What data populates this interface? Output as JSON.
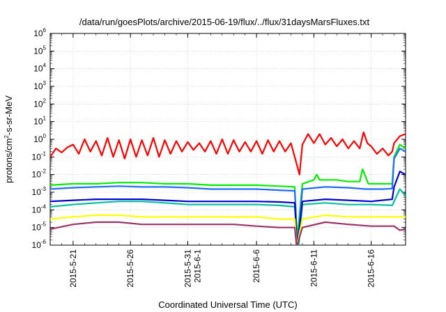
{
  "chart_data": {
    "type": "line",
    "title": "/data/run/goesPlots/archive/2015-06-19/flux/../flux/31daysMarsFluxes.txt",
    "xlabel": "Coordinated Universal Time (UTC)",
    "ylabel": "protons/cm²-s-sr-MeV",
    "ylabel_parts": {
      "pre": "protons/cm",
      "sup": "2",
      "post": "-s-sr-MeV"
    },
    "y_scale": "log",
    "ylim_exponents": [
      -6,
      6
    ],
    "y_tick_base": "10",
    "y_tick_exponents": [
      "-6",
      "-5",
      "-4",
      "-3",
      "-2",
      "-1",
      "0",
      "1",
      "2",
      "3",
      "4",
      "5",
      "6"
    ],
    "xlim": [
      "2015-05-19",
      "2015-06-19"
    ],
    "x_ticks": [
      {
        "date": "2015-05-21",
        "lines": [
          "2015-5-21"
        ]
      },
      {
        "date": "2015-05-26",
        "lines": [
          "2015-5-26"
        ]
      },
      {
        "date": "2015-05-31",
        "lines": [
          "2015-5-31",
          "2015-6-1"
        ]
      },
      {
        "date": "2015-06-06",
        "lines": [
          "2015-6-6"
        ]
      },
      {
        "date": "2015-06-11",
        "lines": [
          "2015-6-11"
        ]
      },
      {
        "date": "2015-06-16",
        "lines": [
          "2015-6-16"
        ]
      }
    ],
    "grid": true,
    "legend": "none",
    "series": [
      {
        "color": "#ff0000",
        "points": [
          [
            "2015-05-19",
            0.1
          ],
          [
            "2015-05-19T12:00",
            0.3
          ],
          [
            "2015-05-20",
            0.18
          ],
          [
            "2015-05-20T12:00",
            0.35
          ],
          [
            "2015-05-21",
            0.5
          ],
          [
            "2015-05-21T12:00",
            0.15
          ],
          [
            "2015-05-22",
            1.0
          ],
          [
            "2015-05-22T12:00",
            0.2
          ],
          [
            "2015-05-23",
            0.8
          ],
          [
            "2015-05-23T12:00",
            0.12
          ],
          [
            "2015-05-24",
            1.2
          ],
          [
            "2015-05-24T12:00",
            0.1
          ],
          [
            "2015-05-25",
            0.9
          ],
          [
            "2015-05-25T12:00",
            0.08
          ],
          [
            "2015-05-26",
            1.0
          ],
          [
            "2015-05-26T12:00",
            0.1
          ],
          [
            "2015-05-27",
            0.9
          ],
          [
            "2015-05-27T12:00",
            0.12
          ],
          [
            "2015-05-28",
            1.2
          ],
          [
            "2015-05-28T12:00",
            0.1
          ],
          [
            "2015-05-29",
            0.9
          ],
          [
            "2015-05-29T12:00",
            0.15
          ],
          [
            "2015-05-30",
            0.8
          ],
          [
            "2015-05-30T12:00",
            0.2
          ],
          [
            "2015-05-31",
            0.7
          ],
          [
            "2015-05-31T12:00",
            0.25
          ],
          [
            "2015-06-01",
            0.6
          ],
          [
            "2015-06-01T12:00",
            0.2
          ],
          [
            "2015-06-02",
            0.8
          ],
          [
            "2015-06-02T12:00",
            0.15
          ],
          [
            "2015-06-03",
            1.0
          ],
          [
            "2015-06-03T12:00",
            0.15
          ],
          [
            "2015-06-04",
            0.9
          ],
          [
            "2015-06-04T12:00",
            0.2
          ],
          [
            "2015-06-05",
            0.7
          ],
          [
            "2015-06-05T12:00",
            0.2
          ],
          [
            "2015-06-06",
            0.8
          ],
          [
            "2015-06-06T12:00",
            0.15
          ],
          [
            "2015-06-07",
            0.9
          ],
          [
            "2015-06-07T12:00",
            0.2
          ],
          [
            "2015-06-08",
            0.8
          ],
          [
            "2015-06-08T12:00",
            0.2
          ],
          [
            "2015-06-09",
            0.6
          ],
          [
            "2015-06-09T12:00",
            0.04
          ],
          [
            "2015-06-09T18:00",
            0.01
          ],
          [
            "2015-06-10",
            0.5
          ],
          [
            "2015-06-10T12:00",
            2.0
          ],
          [
            "2015-06-11",
            0.6
          ],
          [
            "2015-06-11T12:00",
            2.0
          ],
          [
            "2015-06-12",
            0.5
          ],
          [
            "2015-06-12T12:00",
            1.2
          ],
          [
            "2015-06-13",
            0.4
          ],
          [
            "2015-06-13T12:00",
            1.0
          ],
          [
            "2015-06-14",
            0.3
          ],
          [
            "2015-06-14T12:00",
            0.8
          ],
          [
            "2015-06-15",
            0.3
          ],
          [
            "2015-06-15T08:00",
            2.5
          ],
          [
            "2015-06-15T16:00",
            0.6
          ],
          [
            "2015-06-16",
            0.4
          ],
          [
            "2015-06-16T12:00",
            0.15
          ],
          [
            "2015-06-17",
            0.3
          ],
          [
            "2015-06-17T12:00",
            0.12
          ],
          [
            "2015-06-17T20:00",
            0.2
          ],
          [
            "2015-06-18",
            0.6
          ],
          [
            "2015-06-18T12:00",
            1.5
          ],
          [
            "2015-06-19",
            2.0
          ]
        ]
      },
      {
        "color": "#00ee00",
        "points": [
          [
            "2015-05-19",
            0.0025
          ],
          [
            "2015-05-21",
            0.003
          ],
          [
            "2015-05-23",
            0.003
          ],
          [
            "2015-05-25",
            0.0035
          ],
          [
            "2015-05-27",
            0.0035
          ],
          [
            "2015-05-29",
            0.003
          ],
          [
            "2015-05-31",
            0.003
          ],
          [
            "2015-06-02",
            0.0025
          ],
          [
            "2015-06-04",
            0.0025
          ],
          [
            "2015-06-06",
            0.0025
          ],
          [
            "2015-06-08",
            0.0022
          ],
          [
            "2015-06-09T08:00",
            0.002
          ],
          [
            "2015-06-09T12:00",
            8e-07
          ],
          [
            "2015-06-10",
            0.003
          ],
          [
            "2015-06-11",
            0.005
          ],
          [
            "2015-06-11T06:00",
            0.01
          ],
          [
            "2015-06-11T12:00",
            0.005
          ],
          [
            "2015-06-13",
            0.005
          ],
          [
            "2015-06-14",
            0.004
          ],
          [
            "2015-06-15",
            0.004
          ],
          [
            "2015-06-15T06:00",
            0.02
          ],
          [
            "2015-06-15T18:00",
            0.003
          ],
          [
            "2015-06-17",
            0.003
          ],
          [
            "2015-06-17T20:00",
            0.003
          ],
          [
            "2015-06-18",
            0.1
          ],
          [
            "2015-06-18T12:00",
            0.5
          ],
          [
            "2015-06-19",
            0.3
          ]
        ]
      },
      {
        "color": "#1f6bff",
        "points": [
          [
            "2015-05-19",
            0.0015
          ],
          [
            "2015-05-21",
            0.0018
          ],
          [
            "2015-05-23",
            0.002
          ],
          [
            "2015-05-25",
            0.0022
          ],
          [
            "2015-05-27",
            0.002
          ],
          [
            "2015-05-29",
            0.002
          ],
          [
            "2015-05-31",
            0.0018
          ],
          [
            "2015-06-02",
            0.0015
          ],
          [
            "2015-06-04",
            0.0015
          ],
          [
            "2015-06-06",
            0.0015
          ],
          [
            "2015-06-08",
            0.0013
          ],
          [
            "2015-06-09T08:00",
            0.0012
          ],
          [
            "2015-06-09T14:00",
            8e-07
          ],
          [
            "2015-06-10",
            0.0015
          ],
          [
            "2015-06-12",
            0.002
          ],
          [
            "2015-06-14",
            0.0018
          ],
          [
            "2015-06-15T12:00",
            0.0015
          ],
          [
            "2015-06-17",
            0.0015
          ],
          [
            "2015-06-17T20:00",
            0.0016
          ],
          [
            "2015-06-18",
            0.08
          ],
          [
            "2015-06-18T12:00",
            0.3
          ],
          [
            "2015-06-19",
            0.2
          ]
        ]
      },
      {
        "color": "#00c0a0",
        "points": [
          [
            "2015-05-19",
            0.00015
          ],
          [
            "2015-05-21",
            0.0002
          ],
          [
            "2015-05-23",
            0.00025
          ],
          [
            "2015-05-25",
            0.0003
          ],
          [
            "2015-05-27",
            0.0003
          ],
          [
            "2015-05-29",
            0.00025
          ],
          [
            "2015-05-31",
            0.0002
          ],
          [
            "2015-06-02",
            0.0002
          ],
          [
            "2015-06-04",
            0.0002
          ],
          [
            "2015-06-06",
            0.0002
          ],
          [
            "2015-06-08",
            0.00018
          ],
          [
            "2015-06-09T08:00",
            0.00015
          ],
          [
            "2015-06-09T16:00",
            8e-07
          ],
          [
            "2015-06-10",
            0.0002
          ],
          [
            "2015-06-12",
            0.00025
          ],
          [
            "2015-06-14",
            0.0002
          ],
          [
            "2015-06-16",
            0.0002
          ],
          [
            "2015-06-17T20:00",
            0.00018
          ],
          [
            "2015-06-18",
            0.0003
          ],
          [
            "2015-06-18T12:00",
            0.0015
          ],
          [
            "2015-06-19",
            0.0006
          ]
        ]
      },
      {
        "color": "#0000cc",
        "points": [
          [
            "2015-05-19",
            0.0003
          ],
          [
            "2015-05-21",
            0.00035
          ],
          [
            "2015-05-23",
            0.0004
          ],
          [
            "2015-05-25",
            0.0004
          ],
          [
            "2015-05-27",
            0.0004
          ],
          [
            "2015-05-29",
            0.00035
          ],
          [
            "2015-05-31",
            0.0003
          ],
          [
            "2015-06-02",
            0.0003
          ],
          [
            "2015-06-04",
            0.0003
          ],
          [
            "2015-06-06",
            0.0003
          ],
          [
            "2015-06-08",
            0.00028
          ],
          [
            "2015-06-09T08:00",
            0.00025
          ],
          [
            "2015-06-09T13:00",
            8e-07
          ],
          [
            "2015-06-10",
            0.0003
          ],
          [
            "2015-06-12",
            0.0004
          ],
          [
            "2015-06-14",
            0.00035
          ],
          [
            "2015-06-16",
            0.0003
          ],
          [
            "2015-06-17T20:00",
            0.0004
          ],
          [
            "2015-06-18",
            0.002
          ],
          [
            "2015-06-18T12:00",
            0.015
          ],
          [
            "2015-06-19",
            0.01
          ]
        ]
      },
      {
        "color": "#ffff00",
        "points": [
          [
            "2015-05-19",
            3e-05
          ],
          [
            "2015-05-21",
            4e-05
          ],
          [
            "2015-05-23",
            5e-05
          ],
          [
            "2015-05-25",
            5e-05
          ],
          [
            "2015-05-27",
            4e-05
          ],
          [
            "2015-05-29",
            4e-05
          ],
          [
            "2015-05-31",
            4e-05
          ],
          [
            "2015-06-02",
            4e-05
          ],
          [
            "2015-06-04",
            4e-05
          ],
          [
            "2015-06-06",
            4e-05
          ],
          [
            "2015-06-08",
            3e-05
          ],
          [
            "2015-06-09T08:00",
            3e-05
          ],
          [
            "2015-06-09T12:00",
            8e-07
          ],
          [
            "2015-06-10",
            3e-05
          ],
          [
            "2015-06-12",
            5e-05
          ],
          [
            "2015-06-14",
            4e-05
          ],
          [
            "2015-06-16",
            4e-05
          ],
          [
            "2015-06-18",
            4e-05
          ],
          [
            "2015-06-19",
            4e-05
          ]
        ]
      },
      {
        "color": "#993366",
        "points": [
          [
            "2015-05-19",
            8e-06
          ],
          [
            "2015-05-21",
            1.5e-05
          ],
          [
            "2015-05-23",
            2e-05
          ],
          [
            "2015-05-25",
            2e-05
          ],
          [
            "2015-05-27",
            1.5e-05
          ],
          [
            "2015-05-29",
            1.5e-05
          ],
          [
            "2015-05-31",
            1.5e-05
          ],
          [
            "2015-06-02",
            1.5e-05
          ],
          [
            "2015-06-04",
            1.5e-05
          ],
          [
            "2015-06-06",
            1.2e-05
          ],
          [
            "2015-06-08",
            1e-05
          ],
          [
            "2015-06-09T08:00",
            1e-05
          ],
          [
            "2015-06-09T12:00",
            8e-07
          ],
          [
            "2015-06-10",
            1e-05
          ],
          [
            "2015-06-12",
            2e-05
          ],
          [
            "2015-06-14",
            1.5e-05
          ],
          [
            "2015-06-16",
            1.2e-05
          ],
          [
            "2015-06-18",
            1.2e-05
          ],
          [
            "2015-06-18T12:00",
            7e-06
          ],
          [
            "2015-06-19",
            8e-06
          ]
        ]
      }
    ]
  }
}
